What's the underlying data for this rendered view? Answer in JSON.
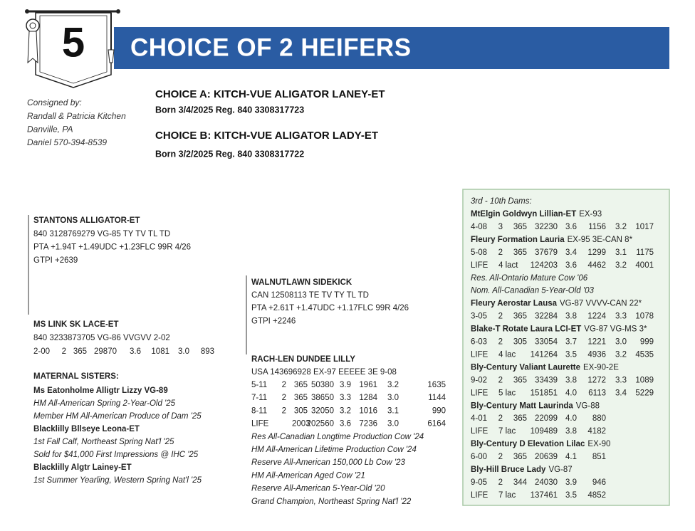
{
  "lot": "5",
  "title": "CHOICE OF 2 HEIFERS",
  "consignor": {
    "label": "Consigned by:",
    "lines": [
      "Randall & Patricia Kitchen",
      "Danville, PA",
      "Daniel 570-394-8539"
    ]
  },
  "choices": [
    {
      "name": "CHOICE A: KITCH-VUE ALIGATOR LANEY-ET",
      "info": "Born 3/4/2025  Reg. 840 3308317723"
    },
    {
      "name": "CHOICE B: KITCH-VUE ALIGATOR LADY-ET",
      "info": "Born 3/2/2025  Reg. 840 3308317722"
    }
  ],
  "sire": {
    "name": "STANTONS ALLIGATOR-ET",
    "lines": [
      "840 3128769279 VG-85 TY TV TL TD",
      "PTA +1.94T +1.49UDC +1.23FLC 99R 4/26",
      "GTPI +2639"
    ]
  },
  "dam": {
    "name": "MS LINK SK LACE-ET",
    "lines": [
      "840 3233873705 VG-86 VVGVV 2-02"
    ],
    "records": [
      [
        "2-00",
        "2",
        "365",
        "29870",
        "3.6",
        "1081",
        "3.0",
        "893"
      ]
    ]
  },
  "maternal_sisters": {
    "heading": "MATERNAL SISTERS:",
    "items": [
      {
        "name": "Ms Eatonholme Alligtr Lizzy VG-89",
        "notes": [
          "HM All-American Spring 2-Year-Old '25",
          "Member HM All-American Produce of Dam '25"
        ]
      },
      {
        "name": "Blacklilly Bllseye Leona-ET",
        "notes": [
          "1st Fall Calf, Northeast Spring Nat'l '25",
          "Sold for $41,000 First Impressions @ IHC '25"
        ]
      },
      {
        "name": "Blacklilly Algtr Lainey-ET",
        "notes": [
          "1st Summer Yearling, Western Spring Nat'l '25"
        ]
      }
    ]
  },
  "sire_of_dam": {
    "name": "WALNUTLAWN SIDEKICK",
    "lines": [
      "CAN 12508113 TE TV TY TL TD",
      "PTA +2.61T +1.47UDC +1.17FLC 99R 4/26",
      "GTPI +2246"
    ]
  },
  "granddam": {
    "name": "RACH-LEN DUNDEE LILLY",
    "lines": [
      "USA 143696928 EX-97 EEEEE 3E 9-08"
    ],
    "records": [
      [
        "5-11",
        "2",
        "365",
        "50380",
        "3.9",
        "1961",
        "3.2",
        "1635"
      ],
      [
        "7-11",
        "2",
        "365",
        "38650",
        "3.3",
        "1284",
        "3.0",
        "1144"
      ],
      [
        "8-11",
        "2",
        "305",
        "32050",
        "3.2",
        "1016",
        "3.1",
        "990"
      ],
      [
        "LIFE",
        "2003",
        "202560",
        "3.6",
        "7236",
        "3.0",
        "6164"
      ]
    ],
    "notes": [
      "Res All-Canadian Longtime Production Cow '24",
      "HM All-American Lifetime Production Cow '24",
      "Reserve All-American 150,000 Lb Cow '23",
      "HM All-American Aged Cow '21",
      "Reserve All-American 5-Year-Old '20",
      "Grand Champion, Northeast Spring Nat'l '22"
    ]
  },
  "dams": {
    "heading": "3rd - 10th Dams:",
    "items": [
      {
        "name": "MtElgin Goldwyn Lillian-ET",
        "score": "EX-93",
        "records": [
          [
            "4-08",
            "3",
            "365",
            "32230",
            "3.6",
            "1156",
            "3.2",
            "1017"
          ]
        ],
        "notes": []
      },
      {
        "name": "Fleury Formation Lauria",
        "score": "EX-95 3E-CAN 8*",
        "records": [
          [
            "5-08",
            "2",
            "365",
            "37679",
            "3.4",
            "1299",
            "3.1",
            "1175"
          ],
          [
            "LIFE",
            "4 lact",
            "124203",
            "3.6",
            "4462",
            "3.2",
            "4001"
          ]
        ],
        "notes": [
          "Res. All-Ontario Mature Cow '06",
          "Nom. All-Canadian 5-Year-Old '03"
        ]
      },
      {
        "name": "Fleury Aerostar Lausa",
        "score": "VG-87 VVVV-CAN 22*",
        "records": [
          [
            "3-05",
            "2",
            "365",
            "32284",
            "3.8",
            "1224",
            "3.3",
            "1078"
          ]
        ],
        "notes": []
      },
      {
        "name": "Blake-T Rotate Laura LCI-ET",
        "score": "VG-87 VG-MS 3*",
        "records": [
          [
            "6-03",
            "2",
            "305",
            "33054",
            "3.7",
            "1221",
            "3.0",
            "999"
          ],
          [
            "LIFE",
            "4 lac",
            "141264",
            "3.5",
            "4936",
            "3.2",
            "4535"
          ]
        ],
        "notes": []
      },
      {
        "name": "Bly-Century Valiant Laurette",
        "score": "EX-90-2E",
        "records": [
          [
            "9-02",
            "2",
            "365",
            "33439",
            "3.8",
            "1272",
            "3.3",
            "1089"
          ],
          [
            "LIFE",
            "5 lac",
            "151851",
            "4.0",
            "6113",
            "3.4",
            "5229"
          ]
        ],
        "notes": []
      },
      {
        "name": "Bly-Century Matt Laurinda",
        "score": "VG-88",
        "records": [
          [
            "4-01",
            "2",
            "365",
            "22099",
            "4.0",
            "880"
          ],
          [
            "LIFE",
            "7 lac",
            "109489",
            "3.8",
            "4182"
          ]
        ],
        "notes": []
      },
      {
        "name": "Bly-Century D Elevation Lilac",
        "score": "EX-90",
        "records": [
          [
            "6-00",
            "2",
            "365",
            "20639",
            "4.1",
            "851"
          ]
        ],
        "notes": []
      },
      {
        "name": "Bly-Hill Bruce Lady",
        "score": "VG-87",
        "records": [
          [
            "9-05",
            "2",
            "344",
            "24030",
            "3.9",
            "946"
          ],
          [
            "LIFE",
            "7 lac",
            "137461",
            "3.5",
            "4852"
          ]
        ],
        "notes": []
      }
    ]
  }
}
